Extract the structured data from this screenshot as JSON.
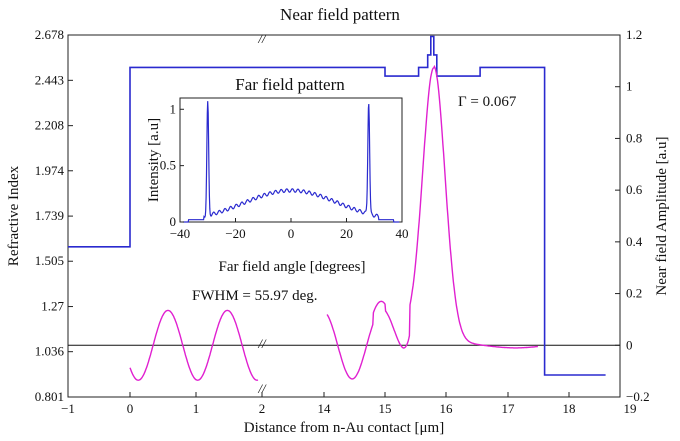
{
  "chart_data": [
    {
      "name": "main",
      "type": "line",
      "title": "Near field pattern",
      "xlabel": "Distance from n-Au contact [μm]",
      "ylabel_left": "Refractive Index",
      "ylabel_right": "Near field Amplitude [a.u]",
      "axis_break_symbol": "//",
      "x_ticks": [
        "−1",
        "0",
        "1",
        "2",
        "14",
        "15",
        "16",
        "17",
        "18",
        "19"
      ],
      "y_left_ticks": [
        "0.801",
        "1.036",
        "1.27",
        "1.505",
        "1.739",
        "1.974",
        "2.208",
        "2.443",
        "2.678"
      ],
      "y_left_range": [
        0.801,
        2.678
      ],
      "y_right_ticks": [
        "−0.2",
        "0",
        "0.2",
        "0.4",
        "0.6",
        "0.8",
        "1",
        "1.2"
      ],
      "y_right_range": [
        -0.2,
        1.2
      ],
      "series": [
        {
          "name": "Refractive index profile",
          "axis": "left",
          "color": "#2a2acf",
          "x": [
            -1,
            0,
            0,
            2,
            14,
            15,
            15,
            15.55,
            15.55,
            15.7,
            15.7,
            15.75,
            15.75,
            15.8,
            15.8,
            15.85,
            15.85,
            16.55,
            16.55,
            17.6,
            17.6,
            18.6
          ],
          "y": [
            1.58,
            1.58,
            2.51,
            2.51,
            2.51,
            2.51,
            2.465,
            2.465,
            2.51,
            2.51,
            2.575,
            2.575,
            2.67,
            2.67,
            2.575,
            2.575,
            2.465,
            2.465,
            2.51,
            2.51,
            0.915,
            0.915
          ]
        },
        {
          "name": "Near field amplitude",
          "axis": "right",
          "color": "#e020d0"
        }
      ],
      "annotations": [
        "Γ = 0.067",
        "FWHM = 55.97 deg."
      ]
    },
    {
      "name": "inset",
      "type": "line",
      "title": "Far field pattern",
      "xlabel": "Far field angle [degrees]",
      "ylabel": "Intensity [a.u]",
      "xlim": [
        -40,
        40
      ],
      "ylim": [
        0,
        1.1
      ],
      "x_ticks": [
        "−40",
        "−20",
        "0",
        "20",
        "40"
      ],
      "y_ticks": [
        "0",
        "0.5",
        "1"
      ],
      "series": [
        {
          "name": "Far field intensity",
          "color": "#2a2acf",
          "peaks_deg": [
            -30,
            28
          ],
          "peak_value": 1.0,
          "center_value": 0.28
        }
      ]
    }
  ]
}
